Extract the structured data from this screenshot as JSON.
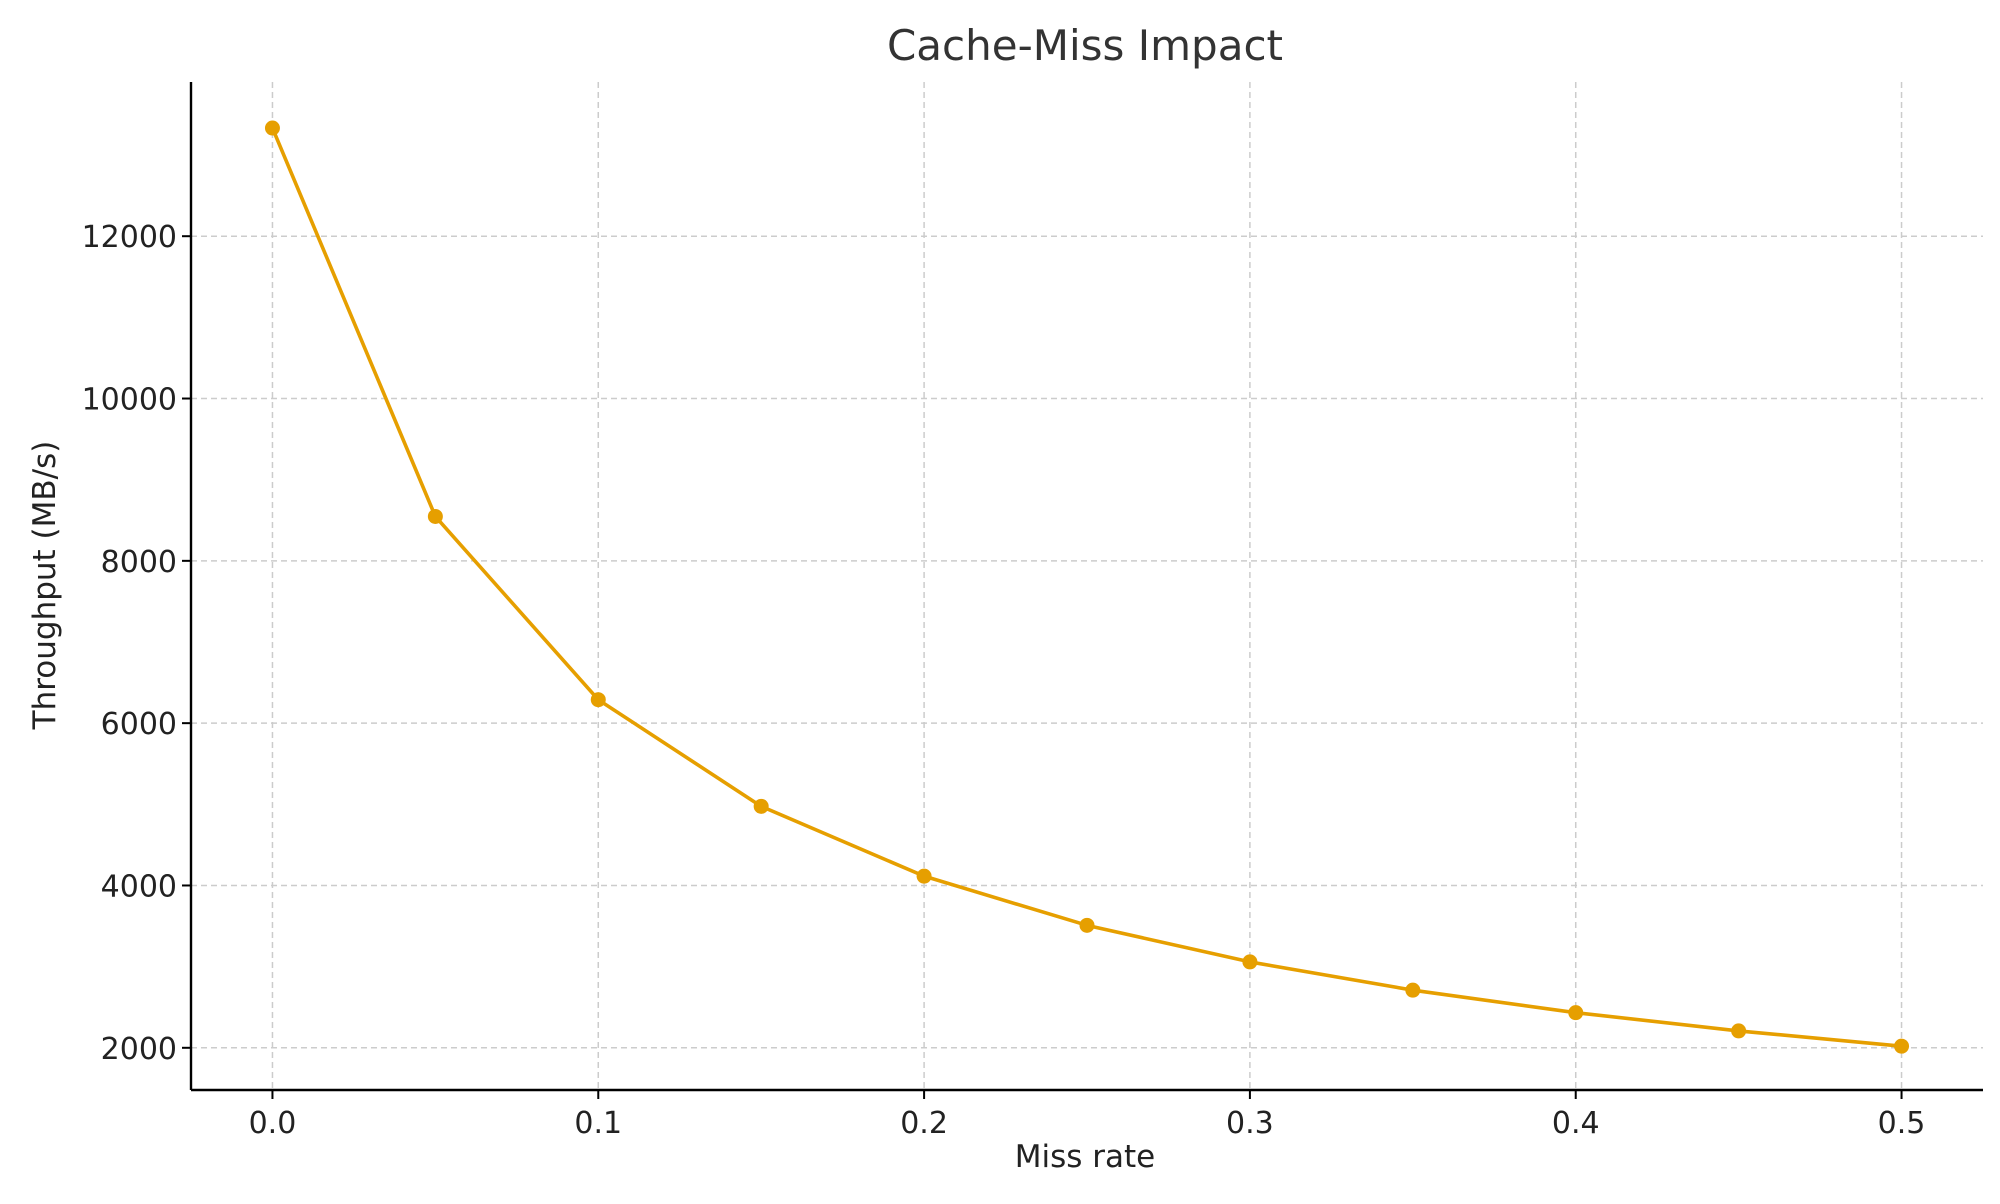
{
  "chart_data": {
    "type": "line",
    "title": "Cache-Miss Impact",
    "xlabel": "Miss rate",
    "ylabel": "Throughput (MB/s)",
    "x": [
      0.0,
      0.05,
      0.1,
      0.15,
      0.2,
      0.25,
      0.3,
      0.35,
      0.4,
      0.45,
      0.5
    ],
    "series": [
      {
        "values": [
          13333,
          8547,
          6289,
          4975,
          4115,
          3509,
          3058,
          2710,
          2433,
          2208,
          2020
        ],
        "color": "#E69F00",
        "marker": "circle"
      }
    ],
    "xlim": [
      -0.025,
      0.525
    ],
    "ylim": [
      1480,
      13900
    ],
    "xticks": [
      0.0,
      0.1,
      0.2,
      0.3,
      0.4,
      0.5
    ],
    "xtick_labels": [
      "0.0",
      "0.1",
      "0.2",
      "0.3",
      "0.4",
      "0.5"
    ],
    "yticks": [
      2000,
      4000,
      6000,
      8000,
      10000,
      12000
    ],
    "ytick_labels": [
      "2000",
      "4000",
      "6000",
      "8000",
      "10000",
      "12000"
    ],
    "grid": true,
    "grid_style": "dashed",
    "legend": false,
    "colors": {
      "line": "#E69F00",
      "grid": "#cccccc",
      "axis": "#000000",
      "text": "#222222",
      "title": "#333333"
    }
  }
}
